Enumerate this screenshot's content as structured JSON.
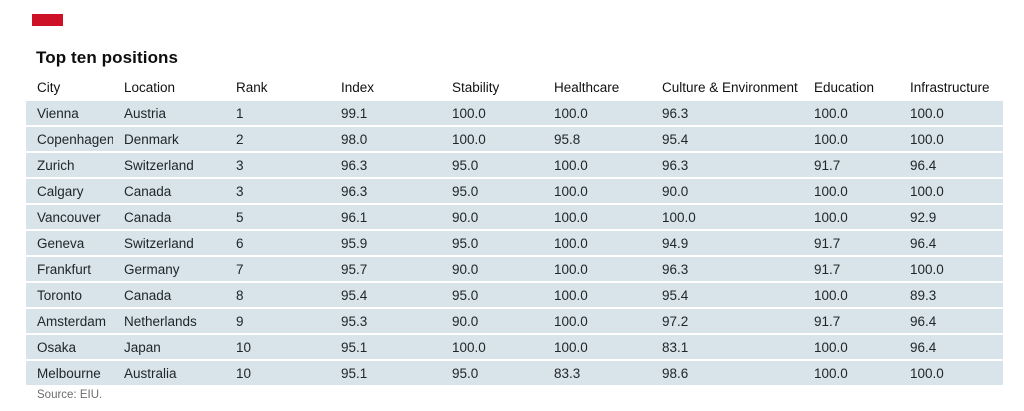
{
  "brand_tab": {
    "color": "#cd1126"
  },
  "title": "Top ten positions",
  "source": "Source: EIU.",
  "colors": {
    "row_background": "#d8e4e9",
    "accent_red": "#cd1126",
    "body_text": "#20262b",
    "source_text": "#6d6d6d"
  },
  "chart_data": {
    "type": "table",
    "title": "Top ten positions",
    "source": "Source: EIU.",
    "columns": [
      "City",
      "Location",
      "Rank",
      "Index",
      "Stability",
      "Healthcare",
      "Culture & Environment",
      "Education",
      "Infrastructure"
    ],
    "rows": [
      [
        "Vienna",
        "Austria",
        "1",
        "99.1",
        "100.0",
        "100.0",
        "96.3",
        "100.0",
        "100.0"
      ],
      [
        "Copenhagen",
        "Denmark",
        "2",
        "98.0",
        "100.0",
        "95.8",
        "95.4",
        "100.0",
        "100.0"
      ],
      [
        "Zurich",
        "Switzerland",
        "3",
        "96.3",
        "95.0",
        "100.0",
        "96.3",
        "91.7",
        "96.4"
      ],
      [
        "Calgary",
        "Canada",
        "3",
        "96.3",
        "95.0",
        "100.0",
        "90.0",
        "100.0",
        "100.0"
      ],
      [
        "Vancouver",
        "Canada",
        "5",
        "96.1",
        "90.0",
        "100.0",
        "100.0",
        "100.0",
        "92.9"
      ],
      [
        "Geneva",
        "Switzerland",
        "6",
        "95.9",
        "95.0",
        "100.0",
        "94.9",
        "91.7",
        "96.4"
      ],
      [
        "Frankfurt",
        "Germany",
        "7",
        "95.7",
        "90.0",
        "100.0",
        "96.3",
        "91.7",
        "100.0"
      ],
      [
        "Toronto",
        "Canada",
        "8",
        "95.4",
        "95.0",
        "100.0",
        "95.4",
        "100.0",
        "89.3"
      ],
      [
        "Amsterdam",
        "Netherlands",
        "9",
        "95.3",
        "90.0",
        "100.0",
        "97.2",
        "91.7",
        "96.4"
      ],
      [
        "Osaka",
        "Japan",
        "10",
        "95.1",
        "100.0",
        "100.0",
        "83.1",
        "100.0",
        "96.4"
      ],
      [
        "Melbourne",
        "Australia",
        "10",
        "95.1",
        "95.0",
        "83.3",
        "98.6",
        "100.0",
        "100.0"
      ]
    ]
  }
}
